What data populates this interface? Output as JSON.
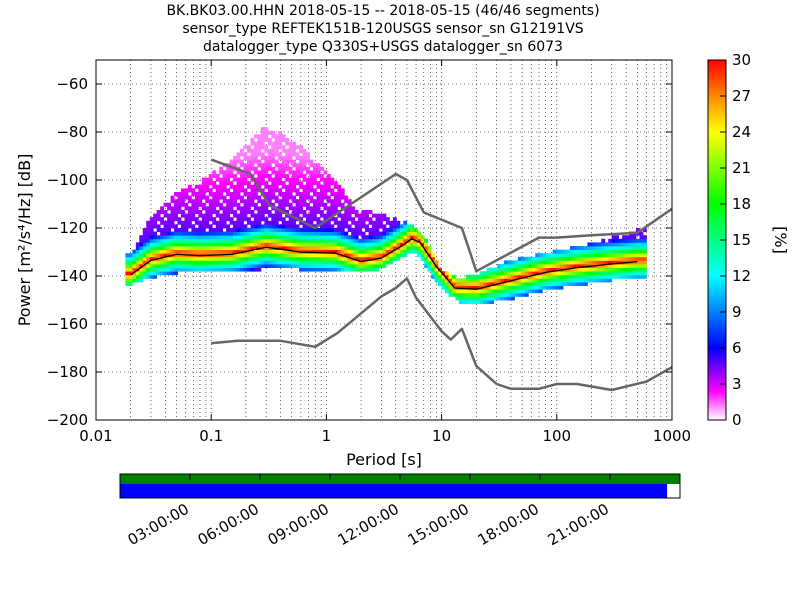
{
  "header": {
    "line1": "BK.BK03.00.HHN   2018-05-15 -- 2018-05-15  (46/46 segments)",
    "line2": "sensor_type REFTEK151B-120USGS sensor_sn G12191VS",
    "line3": "datalogger_type Q330S+USGS datalogger_sn 6073"
  },
  "chart_data": {
    "type": "heatmap",
    "xlabel": "Period [s]",
    "ylabel": "Power [m²/s⁴/Hz] [dB]",
    "xscale": "log",
    "xlim": [
      0.01,
      1000
    ],
    "ylim": [
      -200,
      -50
    ],
    "x_ticks": [
      "0.01",
      "0.1",
      "1",
      "10",
      "100",
      "1000"
    ],
    "y_ticks": [
      "−200",
      "−180",
      "−160",
      "−140",
      "−120",
      "−100",
      "−80",
      "−60"
    ],
    "grid": true,
    "colorbar": {
      "label": "[%]",
      "range": [
        0,
        30
      ],
      "ticks": [
        "0",
        "3",
        "6",
        "9",
        "12",
        "15",
        "18",
        "21",
        "24",
        "27",
        "30"
      ],
      "colors": [
        "#ffffff",
        "#ff00ff",
        "#0000ff",
        "#00ffff",
        "#00ff00",
        "#ffff00",
        "#ff8800",
        "#ff0000"
      ]
    },
    "series": [
      {
        "role": "noise-model-high",
        "color": "#666666",
        "points": [
          [
            0.1,
            -91.5
          ],
          [
            0.22,
            -97.5
          ],
          [
            0.32,
            -110.5
          ],
          [
            0.8,
            -120
          ],
          [
            4,
            -97.5
          ],
          [
            5,
            -100
          ],
          [
            7,
            -113.5
          ],
          [
            15,
            -120
          ],
          [
            20,
            -138
          ],
          [
            70,
            -124
          ],
          [
            100,
            -124
          ],
          [
            200,
            -123
          ],
          [
            500,
            -122
          ],
          [
            1000,
            -112
          ]
        ]
      },
      {
        "role": "noise-model-low",
        "color": "#666666",
        "points": [
          [
            0.1,
            -168
          ],
          [
            0.17,
            -167
          ],
          [
            0.4,
            -167
          ],
          [
            0.8,
            -169.5
          ],
          [
            1.25,
            -163.7
          ],
          [
            3.0,
            -148.5
          ],
          [
            4.0,
            -145
          ],
          [
            5.0,
            -141
          ],
          [
            6.0,
            -149
          ],
          [
            10,
            -163
          ],
          [
            12,
            -166.5
          ],
          [
            15,
            -162
          ],
          [
            20,
            -177.5
          ],
          [
            30,
            -185
          ],
          [
            40,
            -187
          ],
          [
            70,
            -187
          ],
          [
            100,
            -185
          ],
          [
            150,
            -185
          ],
          [
            300,
            -187.5
          ],
          [
            600,
            -184
          ],
          [
            1000,
            -178
          ]
        ]
      },
      {
        "role": "mode",
        "color": "#000000",
        "points": [
          [
            0.02,
            -139.5
          ],
          [
            0.03,
            -133.5
          ],
          [
            0.05,
            -131
          ],
          [
            0.08,
            -131.5
          ],
          [
            0.15,
            -131
          ],
          [
            0.3,
            -128
          ],
          [
            0.6,
            -130
          ],
          [
            1.2,
            -130.5
          ],
          [
            2,
            -134
          ],
          [
            3,
            -132.5
          ],
          [
            4.5,
            -127.5
          ],
          [
            5.5,
            -124.5
          ],
          [
            6.5,
            -126
          ],
          [
            9,
            -136
          ],
          [
            13,
            -145
          ],
          [
            20,
            -145.5
          ],
          [
            40,
            -142
          ],
          [
            80,
            -138.5
          ],
          [
            150,
            -136.5
          ],
          [
            300,
            -135
          ],
          [
            500,
            -134
          ]
        ]
      },
      {
        "role": "max-envelope",
        "color": "#9900ff",
        "points": [
          [
            0.02,
            -131
          ],
          [
            0.025,
            -123
          ],
          [
            0.03,
            -116
          ],
          [
            0.04,
            -110
          ],
          [
            0.05,
            -105
          ],
          [
            0.07,
            -103
          ],
          [
            0.1,
            -98
          ],
          [
            0.14,
            -93
          ],
          [
            0.2,
            -86
          ],
          [
            0.28,
            -79
          ],
          [
            0.4,
            -81
          ],
          [
            0.6,
            -87
          ],
          [
            0.9,
            -95
          ],
          [
            1.3,
            -102
          ],
          [
            1.8,
            -113
          ],
          [
            2.5,
            -114
          ],
          [
            3.5,
            -116
          ],
          [
            5,
            -118
          ],
          [
            7,
            -124
          ],
          [
            10,
            -138
          ],
          [
            14,
            -142
          ],
          [
            20,
            -140
          ],
          [
            40,
            -134
          ],
          [
            100,
            -130
          ],
          [
            200,
            -127
          ],
          [
            400,
            -123
          ],
          [
            600,
            -120
          ]
        ]
      },
      {
        "role": "min-envelope",
        "color": "#9900ff",
        "points": [
          [
            0.02,
            -143
          ],
          [
            0.03,
            -140
          ],
          [
            0.05,
            -138
          ],
          [
            0.1,
            -137
          ],
          [
            0.2,
            -137
          ],
          [
            0.4,
            -136
          ],
          [
            0.8,
            -137
          ],
          [
            1.5,
            -137
          ],
          [
            2.5,
            -138
          ],
          [
            4,
            -133
          ],
          [
            6,
            -129
          ],
          [
            9,
            -142
          ],
          [
            14,
            -150
          ],
          [
            20,
            -151
          ],
          [
            40,
            -149
          ],
          [
            80,
            -145
          ],
          [
            150,
            -143
          ],
          [
            300,
            -141
          ],
          [
            500,
            -140
          ]
        ]
      }
    ]
  },
  "timeline": {
    "labels": [
      "03:00:00",
      "06:00:00",
      "09:00:00",
      "12:00:00",
      "15:00:00",
      "18:00:00",
      "21:00:00"
    ],
    "hours": [
      3,
      6,
      9,
      12,
      15,
      18,
      21
    ],
    "data_fraction": 0.977,
    "data_color": "#008000",
    "psd_color": "#0000ff"
  }
}
